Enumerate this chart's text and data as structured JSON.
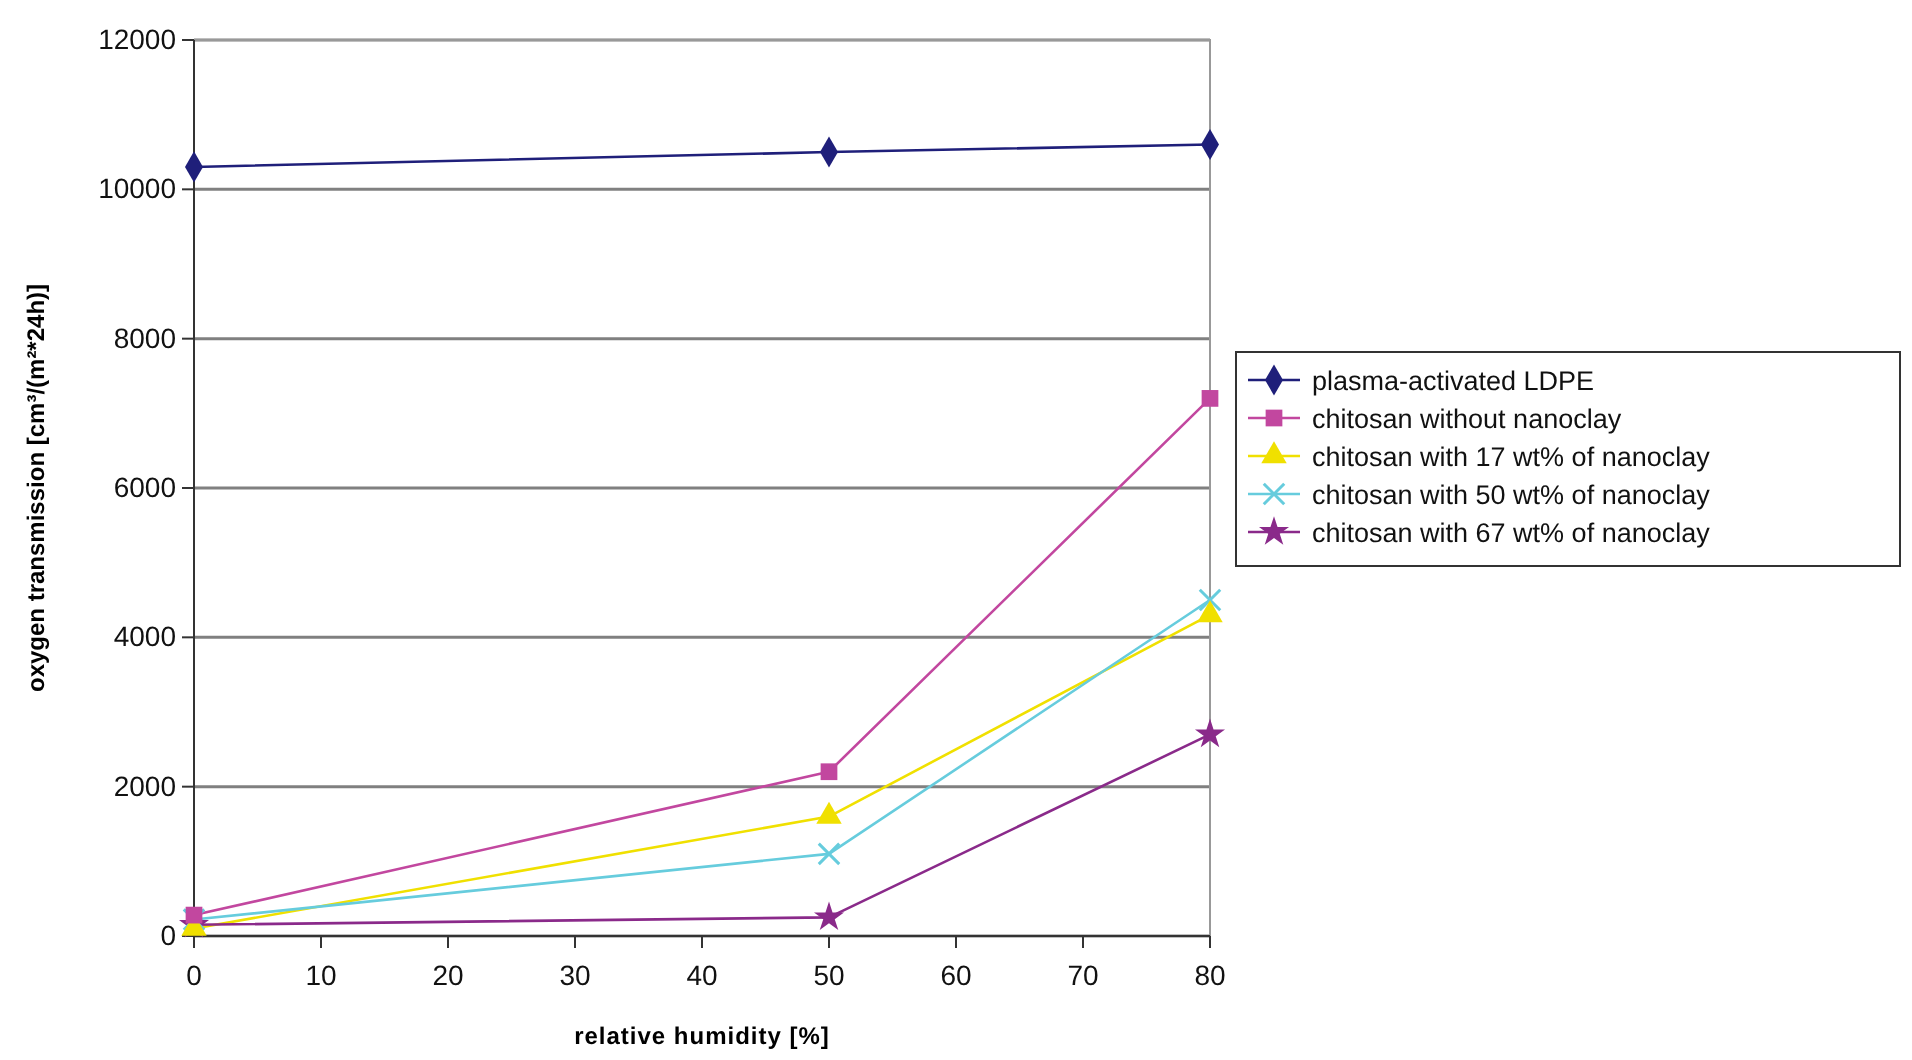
{
  "chart_data": {
    "type": "line",
    "xlabel": "relative humidity [%]",
    "ylabel": "oxygen transmission [cm³/(m²*24h)]",
    "x": [
      0,
      50,
      80
    ],
    "xlim": [
      0,
      80
    ],
    "xticks": [
      0,
      10,
      20,
      30,
      40,
      50,
      60,
      70,
      80
    ],
    "ylim": [
      0,
      12000
    ],
    "yticks": [
      0,
      2000,
      4000,
      6000,
      8000,
      10000,
      12000
    ],
    "grid": "y",
    "legend": "right",
    "line_style": "solid",
    "series": [
      {
        "name": "plasma-activated LDPE",
        "color": "#1f1f7a",
        "marker": "diamond",
        "values": [
          10300,
          10500,
          10600
        ]
      },
      {
        "name": "chitosan without nanoclay",
        "color": "#c2479f",
        "marker": "square",
        "values": [
          280,
          2200,
          7200
        ]
      },
      {
        "name": "chitosan with 17 wt% of nanoclay",
        "color": "#f0e000",
        "marker": "triangle",
        "values": [
          100,
          1600,
          4300
        ]
      },
      {
        "name": "chitosan with 50 wt% of nanoclay",
        "color": "#66ccdd",
        "marker": "cross",
        "values": [
          220,
          1100,
          4500
        ]
      },
      {
        "name": "chitosan with 67 wt% of nanoclay",
        "color": "#8a2a8a",
        "marker": "star",
        "values": [
          150,
          250,
          2700
        ]
      }
    ]
  }
}
